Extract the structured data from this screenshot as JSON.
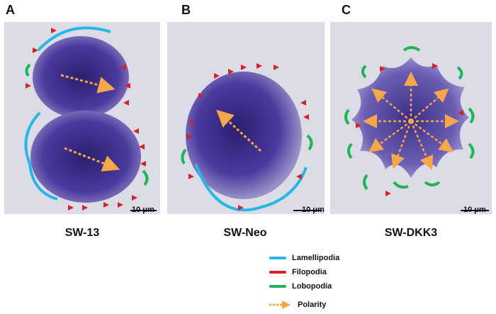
{
  "panels": [
    {
      "letter": "A",
      "caption": "SW-13",
      "scale": "10 μm"
    },
    {
      "letter": "B",
      "caption": "SW-Neo",
      "scale": "10 μm"
    },
    {
      "letter": "C",
      "caption": "SW-DKK3",
      "scale": "10 μm"
    }
  ],
  "legend": {
    "items": [
      {
        "label": "Lamellipodia",
        "color": "#29b6e6"
      },
      {
        "label": "Filopodia",
        "color": "#d2232a"
      },
      {
        "label": "Lobopodia",
        "color": "#1fb35a"
      }
    ],
    "polarity": {
      "label": "Polarity",
      "color": "#f7a64a"
    }
  },
  "colors": {
    "cell": "#4a3a9e",
    "cell_dark": "#2a1f6e",
    "background": "#dcdce6",
    "lamellipodia": "#29b6e6",
    "filopodia": "#d2232a",
    "lobopodia": "#1fb35a",
    "polarity": "#f7a64a"
  }
}
